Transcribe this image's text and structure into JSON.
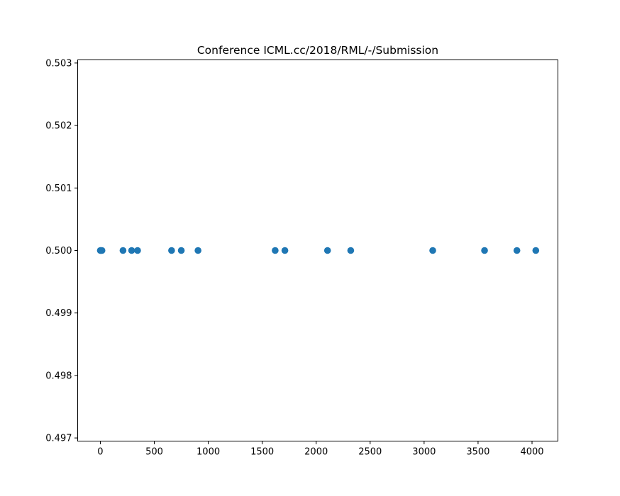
{
  "chart_data": {
    "type": "scatter",
    "title": "Conference ICML.cc/2018/RML/-/Submission",
    "xlabel": "",
    "ylabel": "",
    "xlim": [
      -210,
      4240
    ],
    "ylim": [
      0.49695,
      0.50305
    ],
    "x_ticks": [
      0,
      500,
      1000,
      1500,
      2000,
      2500,
      3000,
      3500,
      4000
    ],
    "x_tick_labels": [
      "0",
      "500",
      "1000",
      "1500",
      "2000",
      "2500",
      "3000",
      "3500",
      "4000"
    ],
    "y_ticks": [
      0.497,
      0.498,
      0.499,
      0.5,
      0.501,
      0.502,
      0.503
    ],
    "y_tick_labels": [
      "0.497",
      "0.498",
      "0.499",
      "0.500",
      "0.501",
      "0.502",
      "0.503"
    ],
    "grid": false,
    "marker_color": "#1f77b4",
    "points": [
      {
        "x": 0,
        "y": 0.5
      },
      {
        "x": 5,
        "y": 0.5
      },
      {
        "x": 15,
        "y": 0.5
      },
      {
        "x": 210,
        "y": 0.5
      },
      {
        "x": 290,
        "y": 0.5
      },
      {
        "x": 345,
        "y": 0.5
      },
      {
        "x": 660,
        "y": 0.5
      },
      {
        "x": 750,
        "y": 0.5
      },
      {
        "x": 905,
        "y": 0.5
      },
      {
        "x": 1620,
        "y": 0.5
      },
      {
        "x": 1710,
        "y": 0.5
      },
      {
        "x": 2105,
        "y": 0.5
      },
      {
        "x": 2320,
        "y": 0.5
      },
      {
        "x": 3080,
        "y": 0.5
      },
      {
        "x": 3560,
        "y": 0.5
      },
      {
        "x": 3860,
        "y": 0.5
      },
      {
        "x": 4035,
        "y": 0.5
      }
    ]
  }
}
